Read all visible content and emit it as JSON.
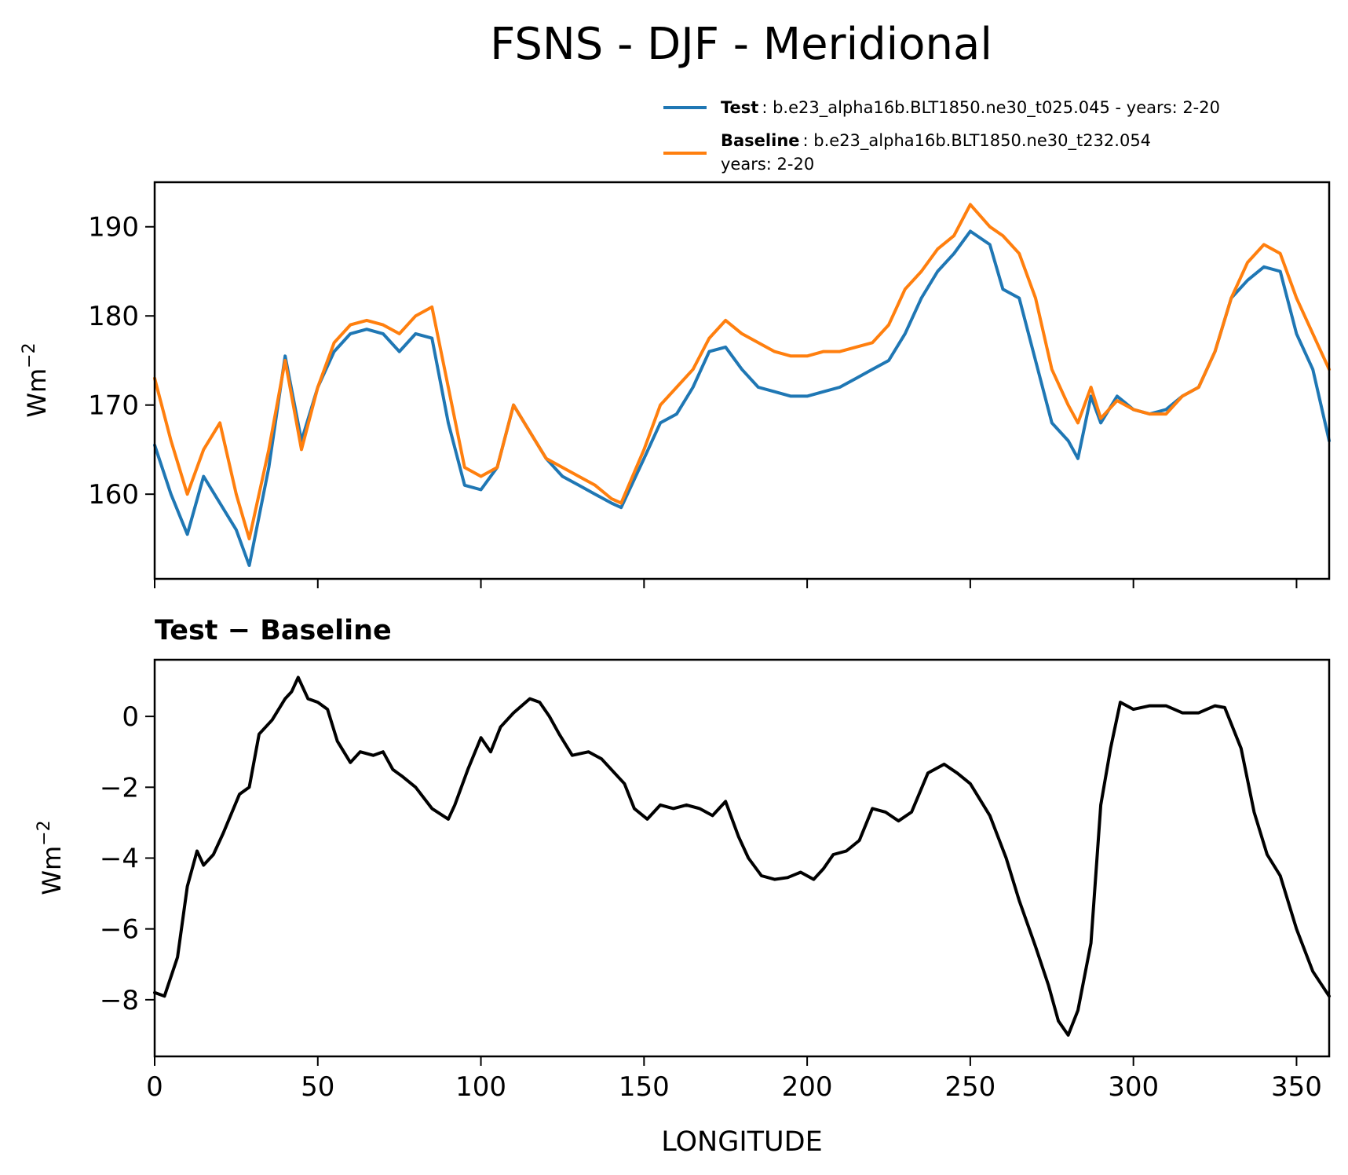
{
  "figure_title": "FSNS - DJF - Meridional",
  "legend": {
    "test_label": "Test",
    "test_desc": ": b.e23_alpha16b.BLT1850.ne30_t025.045 - years: 2-20",
    "baseline_label": "Baseline",
    "baseline_desc": ": b.e23_alpha16b.BLT1850.ne30_t232.054",
    "baseline_desc2": "years: 2-20"
  },
  "colors": {
    "test": "#1f77b4",
    "baseline": "#ff7f0e",
    "diff": "#000000"
  },
  "chart_data": [
    {
      "type": "line",
      "title": "",
      "xlabel": "",
      "ylabel": "Wm",
      "ylabel_sup": "−2",
      "xlim": [
        0,
        360
      ],
      "ylim": [
        150.5,
        195
      ],
      "xticks": [
        0,
        50,
        100,
        150,
        200,
        250,
        300,
        350
      ],
      "yticks": [
        160,
        170,
        180,
        190
      ],
      "ytick_labels": [
        "160",
        "170",
        "180",
        "190"
      ],
      "x": [
        0,
        5,
        10,
        15,
        20,
        25,
        29,
        35,
        40,
        45,
        50,
        55,
        60,
        65,
        70,
        75,
        80,
        85,
        90,
        95,
        100,
        105,
        110,
        115,
        120,
        125,
        130,
        135,
        140,
        143,
        150,
        155,
        160,
        165,
        170,
        175,
        180,
        185,
        190,
        195,
        200,
        205,
        210,
        215,
        220,
        225,
        230,
        235,
        240,
        245,
        250,
        256,
        260,
        265,
        270,
        275,
        280,
        283,
        287,
        290,
        295,
        300,
        305,
        310,
        315,
        320,
        325,
        330,
        335,
        340,
        345,
        350,
        355,
        360
      ],
      "series": [
        {
          "name": "Test",
          "values": [
            165.5,
            160,
            155.5,
            162,
            159,
            156,
            152,
            163,
            175.5,
            166,
            172,
            176,
            178,
            178.5,
            178,
            176,
            178,
            177.5,
            168,
            161,
            160.5,
            163,
            170,
            167,
            164,
            162,
            161,
            160,
            159,
            158.5,
            164,
            168,
            169,
            172,
            176,
            176.5,
            174,
            172,
            171.5,
            171,
            171,
            171.5,
            172,
            173,
            174,
            175,
            178,
            182,
            185,
            187,
            189.5,
            188,
            183,
            182,
            175,
            168,
            166,
            164,
            171,
            168,
            171,
            169.5,
            169,
            169.5,
            171,
            172,
            176,
            182,
            184,
            185.5,
            185,
            178,
            174,
            166
          ]
        },
        {
          "name": "Baseline",
          "values": [
            173,
            166,
            160,
            165,
            168,
            160,
            155,
            165,
            175,
            165,
            172,
            177,
            179,
            179.5,
            179,
            178,
            180,
            181,
            172,
            163,
            162,
            163,
            170,
            167,
            164,
            163,
            162,
            161,
            159.5,
            159,
            165,
            170,
            172,
            174,
            177.5,
            179.5,
            178,
            177,
            176,
            175.5,
            175.5,
            176,
            176,
            176.5,
            177,
            179,
            183,
            185,
            187.5,
            189,
            192.5,
            190,
            189,
            187,
            182,
            174,
            170,
            168,
            172,
            168.5,
            170.5,
            169.5,
            169,
            169,
            171,
            172,
            176,
            182,
            186,
            188,
            187,
            182,
            178,
            174
          ]
        }
      ]
    },
    {
      "type": "line",
      "title": "Test − Baseline",
      "xlabel": "LONGITUDE",
      "ylabel": "Wm",
      "ylabel_sup": "−2",
      "xlim": [
        0,
        360
      ],
      "ylim": [
        -9.6,
        1.6
      ],
      "xticks": [
        0,
        50,
        100,
        150,
        200,
        250,
        300,
        350
      ],
      "xtick_labels": [
        "0",
        "50",
        "100",
        "150",
        "200",
        "250",
        "300",
        "350"
      ],
      "yticks": [
        -8,
        -6,
        -4,
        -2,
        0
      ],
      "ytick_labels": [
        "−8",
        "−6",
        "−4",
        "−2",
        "0"
      ],
      "x": [
        0,
        3,
        7,
        10,
        13,
        15,
        18,
        21,
        26,
        29,
        32,
        36,
        40,
        42,
        44,
        47,
        50,
        53,
        56,
        60,
        63,
        67,
        70,
        73,
        76,
        80,
        85,
        90,
        92,
        96,
        100,
        103,
        106,
        110,
        115,
        118,
        121,
        124,
        128,
        133,
        137,
        141,
        144,
        147,
        151,
        155,
        159,
        163,
        167,
        171,
        175,
        179,
        182,
        186,
        190,
        194,
        198,
        202,
        205,
        208,
        212,
        216,
        220,
        224,
        228,
        232,
        237,
        242,
        246,
        250,
        256,
        261,
        265,
        270,
        274,
        277,
        280,
        283,
        287,
        290,
        293,
        296,
        300,
        305,
        310,
        315,
        320,
        325,
        328,
        333,
        337,
        341,
        345,
        350,
        355,
        360
      ],
      "series": [
        {
          "name": "Test − Baseline",
          "values": [
            -7.8,
            -7.9,
            -6.8,
            -4.8,
            -3.8,
            -4.2,
            -3.9,
            -3.3,
            -2.2,
            -2,
            -0.5,
            -0.1,
            0.5,
            0.7,
            1.1,
            0.5,
            0.4,
            0.2,
            -0.7,
            -1.3,
            -1,
            -1.1,
            -1,
            -1.5,
            -1.7,
            -2,
            -2.6,
            -2.9,
            -2.5,
            -1.5,
            -0.6,
            -1,
            -0.3,
            0.1,
            0.5,
            0.4,
            0,
            -0.5,
            -1.1,
            -1,
            -1.2,
            -1.6,
            -1.9,
            -2.6,
            -2.9,
            -2.5,
            -2.6,
            -2.5,
            -2.6,
            -2.8,
            -2.4,
            -3.4,
            -4,
            -4.5,
            -4.6,
            -4.55,
            -4.4,
            -4.6,
            -4.3,
            -3.9,
            -3.8,
            -3.5,
            -2.6,
            -2.7,
            -2.95,
            -2.7,
            -1.6,
            -1.35,
            -1.6,
            -1.9,
            -2.8,
            -4,
            -5.2,
            -6.5,
            -7.6,
            -8.6,
            -9,
            -8.3,
            -6.4,
            -2.5,
            -0.9,
            0.4,
            0.2,
            0.3,
            0.3,
            0.1,
            0.1,
            0.3,
            0.25,
            -0.9,
            -2.7,
            -3.9,
            -4.5,
            -6,
            -7.2,
            -7.9
          ]
        }
      ]
    }
  ]
}
